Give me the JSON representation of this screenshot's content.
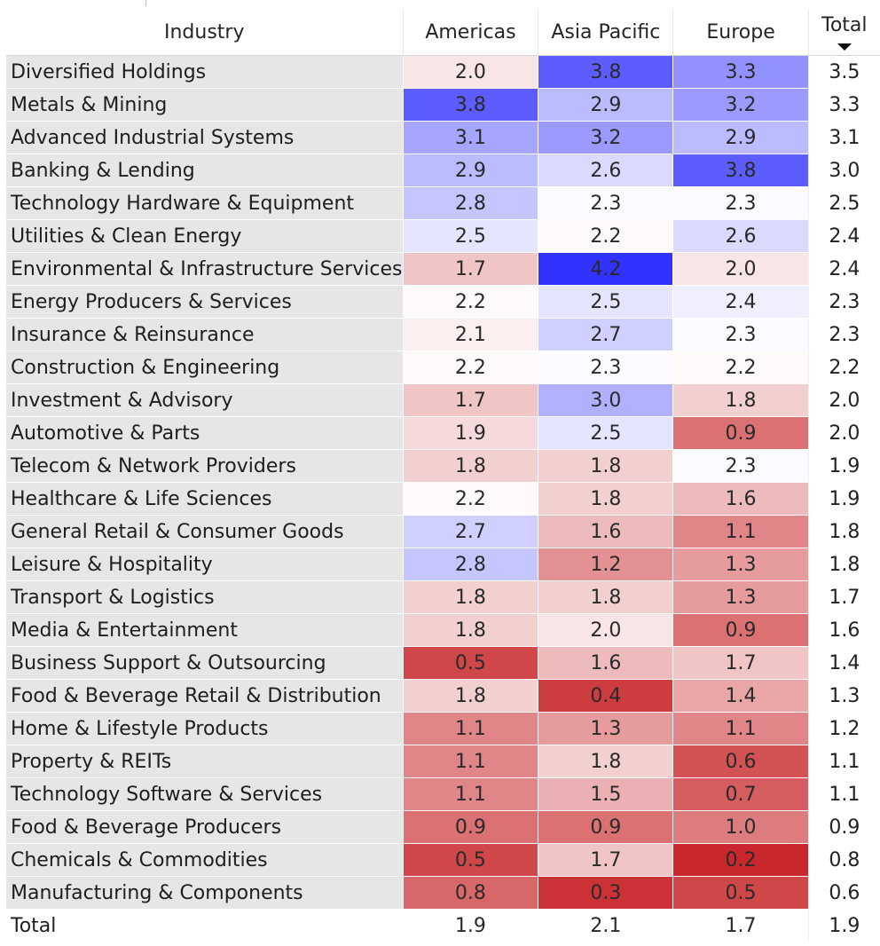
{
  "chart_data": {
    "type": "table",
    "headers": {
      "industry": "Industry",
      "total": "Total"
    },
    "regions": [
      "Americas",
      "Asia Pacific",
      "Europe"
    ],
    "sort": {
      "column": "Total",
      "direction": "descending"
    },
    "color_scale": {
      "low": "#c8282b",
      "mid": "#ffffff",
      "high": "#3232ff",
      "midpoint": 2.25,
      "min": 0.2,
      "max": 4.2
    },
    "rows": [
      {
        "industry": "Diversified Holdings",
        "values": [
          "2.0",
          "3.8",
          "3.3"
        ],
        "total": "3.5"
      },
      {
        "industry": "Metals & Mining",
        "values": [
          "3.8",
          "2.9",
          "3.2"
        ],
        "total": "3.3"
      },
      {
        "industry": "Advanced Industrial Systems",
        "values": [
          "3.1",
          "3.2",
          "2.9"
        ],
        "total": "3.1"
      },
      {
        "industry": "Banking & Lending",
        "values": [
          "2.9",
          "2.6",
          "3.8"
        ],
        "total": "3.0"
      },
      {
        "industry": "Technology Hardware & Equipment",
        "values": [
          "2.8",
          "2.3",
          "2.3"
        ],
        "total": "2.5"
      },
      {
        "industry": "Utilities & Clean Energy",
        "values": [
          "2.5",
          "2.2",
          "2.6"
        ],
        "total": "2.4"
      },
      {
        "industry": "Environmental & Infrastructure Services",
        "values": [
          "1.7",
          "4.2",
          "2.0"
        ],
        "total": "2.4"
      },
      {
        "industry": "Energy Producers & Services",
        "values": [
          "2.2",
          "2.5",
          "2.4"
        ],
        "total": "2.3"
      },
      {
        "industry": "Insurance & Reinsurance",
        "values": [
          "2.1",
          "2.7",
          "2.3"
        ],
        "total": "2.3"
      },
      {
        "industry": "Construction & Engineering",
        "values": [
          "2.2",
          "2.3",
          "2.2"
        ],
        "total": "2.2"
      },
      {
        "industry": "Investment & Advisory",
        "values": [
          "1.7",
          "3.0",
          "1.8"
        ],
        "total": "2.0"
      },
      {
        "industry": "Automotive & Parts",
        "values": [
          "1.9",
          "2.5",
          "0.9"
        ],
        "total": "2.0"
      },
      {
        "industry": "Telecom & Network Providers",
        "values": [
          "1.8",
          "1.8",
          "2.3"
        ],
        "total": "1.9"
      },
      {
        "industry": "Healthcare & Life Sciences",
        "values": [
          "2.2",
          "1.8",
          "1.6"
        ],
        "total": "1.9"
      },
      {
        "industry": "General Retail & Consumer Goods",
        "values": [
          "2.7",
          "1.6",
          "1.1"
        ],
        "total": "1.8"
      },
      {
        "industry": "Leisure & Hospitality",
        "values": [
          "2.8",
          "1.2",
          "1.3"
        ],
        "total": "1.8"
      },
      {
        "industry": "Transport & Logistics",
        "values": [
          "1.8",
          "1.8",
          "1.3"
        ],
        "total": "1.7"
      },
      {
        "industry": "Media & Entertainment",
        "values": [
          "1.8",
          "2.0",
          "0.9"
        ],
        "total": "1.6"
      },
      {
        "industry": "Business Support & Outsourcing",
        "values": [
          "0.5",
          "1.6",
          "1.7"
        ],
        "total": "1.4"
      },
      {
        "industry": "Food & Beverage Retail & Distribution",
        "values": [
          "1.8",
          "0.4",
          "1.4"
        ],
        "total": "1.3"
      },
      {
        "industry": "Home & Lifestyle Products",
        "values": [
          "1.1",
          "1.3",
          "1.1"
        ],
        "total": "1.2"
      },
      {
        "industry": "Property & REITs",
        "values": [
          "1.1",
          "1.8",
          "0.6"
        ],
        "total": "1.1"
      },
      {
        "industry": "Technology Software & Services",
        "values": [
          "1.1",
          "1.5",
          "0.7"
        ],
        "total": "1.1"
      },
      {
        "industry": "Food & Beverage Producers",
        "values": [
          "0.9",
          "0.9",
          "1.0"
        ],
        "total": "0.9"
      },
      {
        "industry": "Chemicals & Commodities",
        "values": [
          "0.5",
          "1.7",
          "0.2"
        ],
        "total": "0.8"
      },
      {
        "industry": "Manufacturing & Components",
        "values": [
          "0.8",
          "0.3",
          "0.5"
        ],
        "total": "0.6"
      }
    ],
    "total_row": {
      "label": "Total",
      "values": [
        "1.9",
        "2.1",
        "1.7"
      ],
      "total": "1.9"
    }
  }
}
